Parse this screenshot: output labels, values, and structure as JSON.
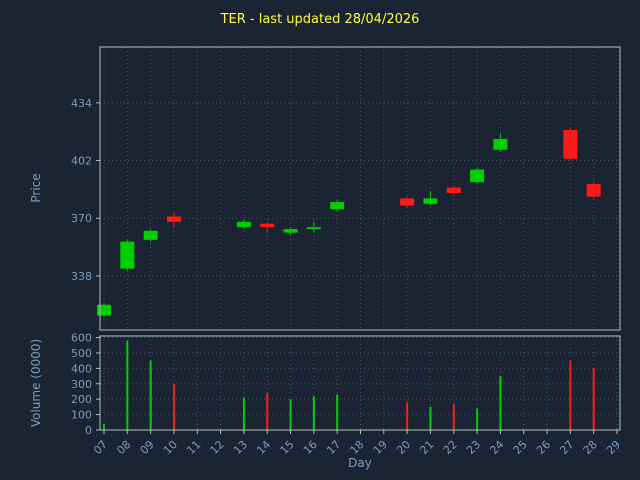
{
  "page": {
    "background": "#1b2433"
  },
  "chart_data": {
    "type": "candlestick",
    "title": "TER - last updated 28/04/2026",
    "xlabel": "Day",
    "ylabel_price": "Price",
    "ylabel_volume": "Volume (0000)",
    "x_domain": [
      7,
      29
    ],
    "x_tick_labels": [
      "07",
      "08",
      "09",
      "10",
      "11",
      "12",
      "13",
      "14",
      "15",
      "16",
      "17",
      "18",
      "19",
      "20",
      "21",
      "22",
      "23",
      "24",
      "25",
      "26",
      "27",
      "28",
      "29"
    ],
    "price_ticks": [
      338,
      370,
      402,
      434
    ],
    "volume_ticks": [
      0,
      100,
      200,
      300,
      400,
      500,
      600
    ],
    "price_ylim": [
      308,
      465
    ],
    "volume_ylim": [
      0,
      610
    ],
    "grid": true,
    "legend": "none",
    "candles": [
      {
        "day": 7,
        "open": 316,
        "high": 323,
        "low": 315,
        "close": 322,
        "volume": 40
      },
      {
        "day": 8,
        "open": 342,
        "high": 358,
        "low": 341,
        "close": 357,
        "volume": 580
      },
      {
        "day": 9,
        "open": 358,
        "high": 364,
        "low": 357,
        "close": 363,
        "volume": 450
      },
      {
        "day": 10,
        "open": 371,
        "high": 373,
        "low": 365,
        "close": 368,
        "volume": 300
      },
      {
        "day": 13,
        "open": 365,
        "high": 369,
        "low": 364,
        "close": 368,
        "volume": 210
      },
      {
        "day": 14,
        "open": 367,
        "high": 368,
        "low": 362,
        "close": 365,
        "volume": 240
      },
      {
        "day": 15,
        "open": 362,
        "high": 365,
        "low": 361,
        "close": 364,
        "volume": 200
      },
      {
        "day": 16,
        "open": 364,
        "high": 368,
        "low": 362,
        "close": 365,
        "volume": 220
      },
      {
        "day": 17,
        "open": 375,
        "high": 380,
        "low": 374,
        "close": 379,
        "volume": 230
      },
      {
        "day": 20,
        "open": 381,
        "high": 382,
        "low": 376,
        "close": 377,
        "volume": 180
      },
      {
        "day": 21,
        "open": 378,
        "high": 385,
        "low": 377,
        "close": 381,
        "volume": 150
      },
      {
        "day": 22,
        "open": 387,
        "high": 388,
        "low": 383,
        "close": 384,
        "volume": 170
      },
      {
        "day": 23,
        "open": 390,
        "high": 398,
        "low": 389,
        "close": 397,
        "volume": 140
      },
      {
        "day": 24,
        "open": 408,
        "high": 417,
        "low": 407,
        "close": 414,
        "volume": 350
      },
      {
        "day": 27,
        "open": 419,
        "high": 420,
        "low": 402,
        "close": 403,
        "volume": 450
      },
      {
        "day": 28,
        "open": 389,
        "high": 390,
        "low": 381,
        "close": 382,
        "volume": 400
      }
    ],
    "colors": {
      "up": "#00d000",
      "down": "#ff1a1a",
      "grid": "#4d586b",
      "spine": "#b9c0ca",
      "tick_label": "#7d9cc0",
      "title": "#ffff33",
      "background": "#1b2433"
    }
  }
}
